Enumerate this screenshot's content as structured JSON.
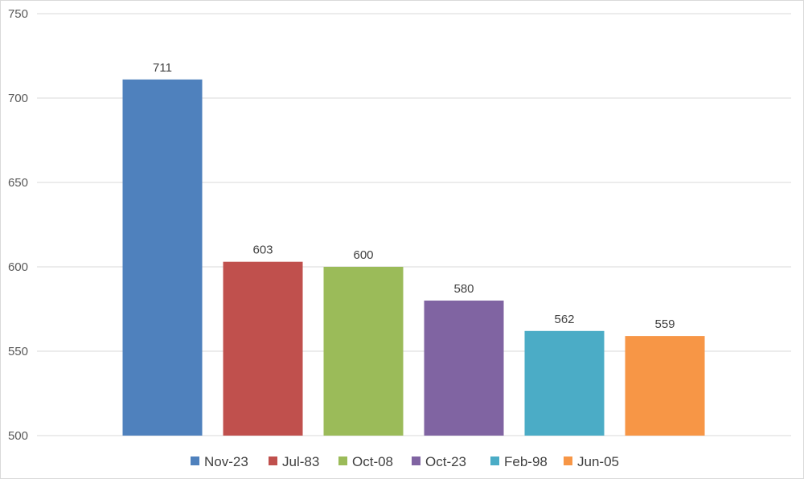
{
  "chart_data": {
    "type": "bar",
    "title": "",
    "xlabel": "",
    "ylabel": "",
    "ylim": [
      500,
      750
    ],
    "yticks": [
      500,
      550,
      600,
      650,
      700,
      750
    ],
    "grid": true,
    "legend_position": "bottom",
    "show_data_labels": true,
    "categories": [
      "Nov-23",
      "Jul-83",
      "Oct-08",
      "Oct-23",
      "Feb-98",
      "Jun-05"
    ],
    "values": [
      711,
      603,
      600,
      580,
      562,
      559
    ],
    "colors": [
      "#4f81bd",
      "#c0504d",
      "#9bbb59",
      "#8064a2",
      "#4bacc6",
      "#f79646"
    ]
  }
}
